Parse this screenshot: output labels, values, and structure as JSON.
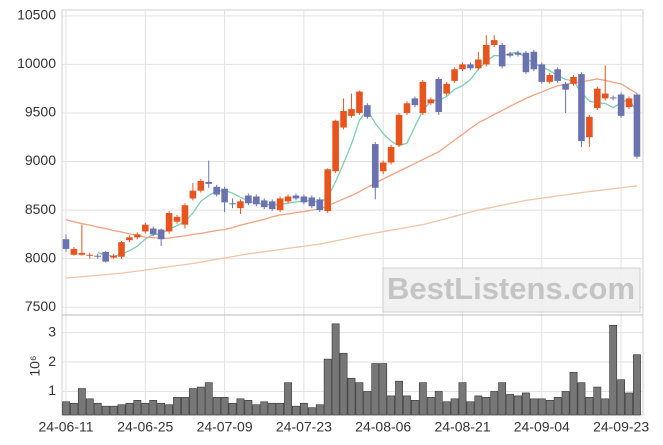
{
  "chart_data": {
    "type": "candlestick",
    "categories": [
      "24-06-11",
      null,
      null,
      null,
      null,
      null,
      null,
      null,
      null,
      null,
      "24-06-25",
      null,
      null,
      null,
      null,
      null,
      null,
      null,
      null,
      null,
      "24-07-09",
      null,
      null,
      null,
      null,
      null,
      null,
      null,
      null,
      null,
      "24-07-23",
      null,
      null,
      null,
      null,
      null,
      null,
      null,
      null,
      null,
      "24-08-06",
      null,
      null,
      null,
      null,
      null,
      null,
      null,
      null,
      null,
      "24-08-21",
      null,
      null,
      null,
      null,
      null,
      null,
      null,
      null,
      null,
      "24-09-04",
      null,
      null,
      null,
      null,
      null,
      null,
      null,
      null,
      null,
      "24-09-23",
      null,
      null
    ],
    "open": [
      8200,
      8040,
      8040,
      8030,
      8030,
      8070,
      8010,
      8020,
      8190,
      8220,
      8280,
      8310,
      8300,
      8280,
      8380,
      8350,
      8620,
      8700,
      8790,
      8740,
      8720,
      8570,
      8520,
      8650,
      8640,
      8600,
      8590,
      8500,
      8590,
      8650,
      8640,
      8630,
      8610,
      8490,
      8900,
      9350,
      9470,
      9500,
      9580,
      9180,
      8900,
      8990,
      9170,
      9500,
      9650,
      9500,
      9600,
      9850,
      9700,
      9830,
      9950,
      10000,
      9960,
      10000,
      10200,
      10200,
      10110,
      10120,
      10120,
      10130,
      10000,
      9820,
      9950,
      9800,
      9800,
      9900,
      9250,
      9550,
      9650,
      9660,
      9690,
      9560,
      9690
    ],
    "high": [
      8250,
      8120,
      8350,
      8060,
      8050,
      8080,
      8050,
      8180,
      8240,
      8270,
      8370,
      8330,
      8310,
      8490,
      8450,
      8570,
      8780,
      8820,
      9010,
      8760,
      8740,
      8620,
      8610,
      8670,
      8660,
      8620,
      8610,
      8640,
      8660,
      8670,
      8660,
      8650,
      8630,
      8930,
      9430,
      9650,
      9700,
      9730,
      9600,
      9200,
      9010,
      9170,
      9500,
      9620,
      9670,
      9840,
      9660,
      9870,
      9820,
      9970,
      10020,
      10020,
      10130,
      10300,
      10300,
      10220,
      10130,
      10140,
      10140,
      10150,
      10020,
      9910,
      9970,
      9820,
      9890,
      9920,
      9480,
      9770,
      9990,
      9680,
      9710,
      9670,
      9700
    ],
    "low": [
      8070,
      8030,
      8030,
      8000,
      8000,
      7960,
      8000,
      8000,
      8170,
      8200,
      8260,
      8230,
      8130,
      8260,
      8360,
      8310,
      8600,
      8680,
      8730,
      8640,
      8480,
      8520,
      8460,
      8550,
      8540,
      8510,
      8490,
      8480,
      8570,
      8600,
      8560,
      8520,
      8480,
      8470,
      8880,
      9330,
      9450,
      9480,
      9440,
      8610,
      8870,
      8970,
      9150,
      9480,
      9560,
      9480,
      9580,
      9480,
      9680,
      9810,
      9930,
      9940,
      9940,
      9980,
      10180,
      9960,
      10070,
      10080,
      9900,
      9930,
      9800,
      9800,
      9810,
      9500,
      9780,
      9150,
      9150,
      9530,
      9630,
      9630,
      9450,
      9540,
      9030
    ],
    "close": [
      8100,
      8100,
      8060,
      8040,
      8020,
      7970,
      8030,
      8170,
      8220,
      8250,
      8350,
      8250,
      8200,
      8470,
      8430,
      8550,
      8700,
      8800,
      8770,
      8660,
      8580,
      8560,
      8590,
      8570,
      8560,
      8530,
      8510,
      8620,
      8640,
      8620,
      8580,
      8540,
      8500,
      8920,
      9420,
      9520,
      9540,
      9720,
      9460,
      8730,
      8990,
      9150,
      9480,
      9600,
      9580,
      9820,
      9640,
      9510,
      9800,
      9950,
      10000,
      9960,
      10050,
      10200,
      10250,
      9980,
      10090,
      10100,
      9920,
      9950,
      9820,
      9890,
      9830,
      9740,
      9870,
      9210,
      9460,
      9750,
      9700,
      9650,
      9470,
      9650,
      9050
    ],
    "up_color": "#e8541e",
    "down_color": "#6b72b0",
    "lines": [
      {
        "color": "#7fcfb0",
        "values": [
          null,
          null,
          null,
          null,
          8064,
          8038,
          8024,
          8046,
          8082,
          8128,
          8204,
          8248,
          8254,
          8304,
          8340,
          8380,
          8470,
          8590,
          8650,
          8696,
          8702,
          8674,
          8632,
          8592,
          8572,
          8562,
          8552,
          8558,
          8572,
          8584,
          8594,
          8600,
          8576,
          8632,
          8792,
          8980,
          9180,
          9424,
          9532,
          9394,
          9288,
          9210,
          9162,
          9190,
          9360,
          9526,
          9624,
          9630,
          9670,
          9744,
          9780,
          9844,
          9952,
          10032,
          10092,
          10088,
          10114,
          10124,
          10068,
          10008,
          9976,
          9936,
          9882,
          9846,
          9830,
          9708,
          9622,
          9606,
          9598,
          9554,
          9606,
          9644,
          9504
        ]
      },
      {
        "color": "#f0a282",
        "values": [
          8400,
          8380,
          8360,
          8345,
          8325,
          8310,
          8290,
          8275,
          8255,
          8240,
          8220,
          8215,
          8210,
          8210,
          8225,
          8235,
          8250,
          8260,
          8275,
          8290,
          8300,
          8320,
          8345,
          8365,
          8385,
          8405,
          8430,
          8450,
          8460,
          8475,
          8485,
          8500,
          8510,
          8545,
          8580,
          8615,
          8650,
          8690,
          8735,
          8775,
          8820,
          8860,
          8900,
          8940,
          8980,
          9020,
          9060,
          9100,
          9160,
          9220,
          9280,
          9340,
          9400,
          9440,
          9485,
          9525,
          9570,
          9610,
          9650,
          9685,
          9715,
          9750,
          9780,
          9795,
          9810,
          9820,
          9835,
          9850,
          9835,
          9815,
          9800,
          9750,
          9700
        ]
      },
      {
        "color": "#f2c4a6",
        "values": [
          7800,
          7807,
          7814,
          7821,
          7829,
          7836,
          7843,
          7850,
          7861,
          7872,
          7883,
          7894,
          7906,
          7917,
          7928,
          7939,
          7950,
          7964,
          7979,
          7993,
          8007,
          8021,
          8036,
          8050,
          8061,
          8072,
          8083,
          8094,
          8106,
          8117,
          8128,
          8139,
          8150,
          8167,
          8183,
          8200,
          8217,
          8233,
          8250,
          8264,
          8279,
          8293,
          8307,
          8321,
          8336,
          8350,
          8371,
          8393,
          8414,
          8436,
          8457,
          8479,
          8500,
          8517,
          8533,
          8550,
          8567,
          8583,
          8600,
          8611,
          8623,
          8634,
          8646,
          8657,
          8669,
          8680,
          8690,
          8700,
          8710,
          8720,
          8730,
          8740,
          8750
        ]
      }
    ],
    "ylim": [
      7420,
      10560
    ],
    "yticks": [
      7500,
      8000,
      8500,
      9000,
      9500,
      10000,
      10500
    ],
    "grid": true,
    "volume": {
      "color": "#777777",
      "label": "10⁶",
      "ylim": [
        0.2,
        3.6
      ],
      "yticks": [
        1,
        2,
        3
      ],
      "values": [
        0.65,
        0.6,
        1.1,
        0.75,
        0.6,
        0.5,
        0.5,
        0.55,
        0.6,
        0.7,
        0.6,
        0.7,
        0.6,
        0.55,
        0.8,
        0.8,
        1.1,
        1.15,
        1.3,
        0.8,
        0.8,
        0.6,
        0.75,
        0.7,
        0.55,
        0.65,
        0.6,
        0.6,
        1.3,
        0.5,
        0.6,
        0.45,
        0.55,
        2.1,
        3.3,
        2.3,
        1.45,
        1.3,
        1.0,
        1.95,
        1.95,
        0.85,
        1.35,
        0.85,
        0.7,
        1.3,
        0.8,
        1.0,
        0.65,
        0.75,
        1.3,
        0.65,
        0.85,
        0.8,
        1.0,
        1.3,
        0.9,
        0.85,
        0.95,
        0.75,
        0.75,
        0.7,
        0.8,
        1.0,
        1.65,
        1.3,
        0.8,
        1.15,
        0.75,
        3.25,
        1.4,
        0.95,
        2.25
      ]
    },
    "watermark": "BestListens.com"
  }
}
